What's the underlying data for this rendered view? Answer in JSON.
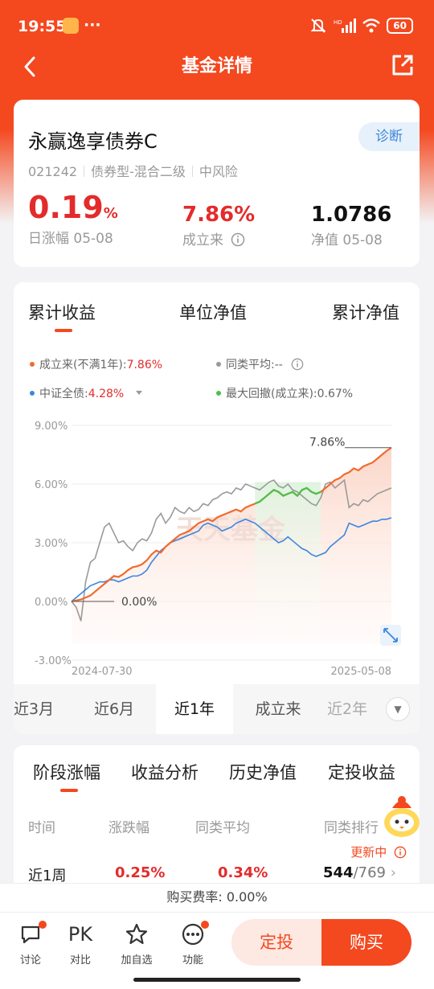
{
  "status": {
    "time": "19:55",
    "dots": "···",
    "battery": "60",
    "hd": "HD"
  },
  "header": {
    "title": "基金详情"
  },
  "fund": {
    "name": "永赢逸享债券C",
    "code": "021242",
    "type": "债券型-混合二级",
    "risk": "中风险",
    "diag_label": "诊断",
    "daily_change_value": "0.19",
    "daily_change_unit": "%",
    "daily_change_label": "日涨幅 05-08",
    "since_inception_value": "7.86%",
    "since_inception_label": "成立来",
    "nav_value": "1.0786",
    "nav_label": "净值 05-08"
  },
  "chart_tabs": [
    "累计收益",
    "单位净值",
    "累计净值"
  ],
  "legend": {
    "item1_label": "成立来(不满1年):",
    "item1_value": "7.86%",
    "item2": "同类平均:--",
    "item3_label": "中证全债:",
    "item3_value": "4.28%",
    "item4": "最大回撤(成立来):0.67%"
  },
  "colors": {
    "accent": "#f4481f",
    "fund": "#f06b2e",
    "peer": "#9a9a9a",
    "index": "#3d86e0",
    "drawdown": "#4cc04c"
  },
  "chart_data": {
    "type": "line",
    "yticks": [
      "9.00%",
      "6.00%",
      "3.00%",
      "0.00%",
      "-3.00%"
    ],
    "ylim": [
      -3,
      9
    ],
    "x_start": "2024-07-30",
    "x_end": "2025-05-08",
    "start_label": "0.00%",
    "end_label": "7.86%",
    "watermark": "天天基金",
    "max_drawdown_highlight": true,
    "series": [
      {
        "name": "成立来",
        "values": [
          0,
          0.05,
          0.1,
          0.2,
          0.3,
          0.5,
          0.7,
          0.9,
          1.1,
          1.3,
          1.25,
          1.4,
          1.6,
          1.75,
          1.8,
          1.9,
          2.1,
          2.4,
          2.6,
          2.5,
          2.8,
          3.0,
          3.2,
          3.4,
          3.5,
          3.6,
          3.8,
          4.0,
          4.1,
          4.2,
          4.1,
          4.3,
          4.4,
          4.5,
          4.6,
          4.7,
          4.6,
          4.8,
          4.9,
          5.0,
          5.1,
          5.3,
          5.5,
          5.7,
          5.6,
          5.4,
          5.5,
          5.6,
          5.4,
          5.7,
          5.8,
          5.6,
          5.5,
          5.6,
          5.8,
          6.0,
          6.2,
          6.3,
          6.5,
          6.6,
          6.8,
          6.7,
          6.9,
          7.0,
          7.1,
          7.3,
          7.5,
          7.7,
          7.86
        ]
      },
      {
        "name": "同类平均",
        "values": [
          0,
          -0.3,
          -1.0,
          1.0,
          2.0,
          2.2,
          3.0,
          3.8,
          4.0,
          3.5,
          3.0,
          3.1,
          2.8,
          2.6,
          3.0,
          3.2,
          3.1,
          3.5,
          4.2,
          4.5,
          4.0,
          4.3,
          4.8,
          4.6,
          4.5,
          4.8,
          4.6,
          4.7,
          5.0,
          4.9,
          5.2,
          5.3,
          5.5,
          5.6,
          5.5,
          5.8,
          5.7,
          6.0,
          5.9,
          5.8,
          5.7,
          5.9,
          6.1,
          6.2,
          5.9,
          5.8,
          6.0,
          5.7,
          5.6,
          5.4,
          5.2,
          5.0,
          4.9,
          5.3,
          6.0,
          6.1,
          5.8,
          6.0,
          6.2,
          4.8,
          5.0,
          4.9,
          5.2,
          5.1,
          5.3,
          5.5,
          5.6,
          5.7,
          5.8
        ]
      },
      {
        "name": "中证全债",
        "values": [
          0,
          0.2,
          0.4,
          0.6,
          0.8,
          0.9,
          1.0,
          1.0,
          1.1,
          1.1,
          1.0,
          1.1,
          1.2,
          1.3,
          1.3,
          1.4,
          1.6,
          2.0,
          2.3,
          2.6,
          2.8,
          3.0,
          3.1,
          3.2,
          3.3,
          3.4,
          3.5,
          3.6,
          3.9,
          4.0,
          3.9,
          3.8,
          3.6,
          3.7,
          3.8,
          4.0,
          4.1,
          4.2,
          4.1,
          4.0,
          3.8,
          3.6,
          3.4,
          3.2,
          3.0,
          3.1,
          3.3,
          3.1,
          2.9,
          2.7,
          2.6,
          2.4,
          2.3,
          2.4,
          2.5,
          2.8,
          3.0,
          3.2,
          3.4,
          4.0,
          3.9,
          3.8,
          3.9,
          4.0,
          4.1,
          4.1,
          4.2,
          4.2,
          4.28
        ]
      }
    ]
  },
  "range_tabs": [
    "近3月",
    "近6月",
    "近1年",
    "成立来",
    "近2年"
  ],
  "perf": {
    "tabs": [
      "阶段涨幅",
      "收益分析",
      "历史净值",
      "定投收益"
    ],
    "headers": [
      "时间",
      "涨跌幅",
      "同类平均",
      "同类排行"
    ],
    "updating": "更新中",
    "row": {
      "period": "近1周",
      "change": "0.25%",
      "avg": "0.34%",
      "rank": "544",
      "total": "/769"
    }
  },
  "fee": "购买费率: 0.00%",
  "bottom": {
    "items": [
      {
        "label": "讨论",
        "icon_text": ""
      },
      {
        "label": "对比",
        "icon_text": "PK"
      },
      {
        "label": "加自选",
        "icon_text": ""
      },
      {
        "label": "功能",
        "icon_text": ""
      }
    ],
    "dingtou": "定投",
    "buy": "购买"
  }
}
